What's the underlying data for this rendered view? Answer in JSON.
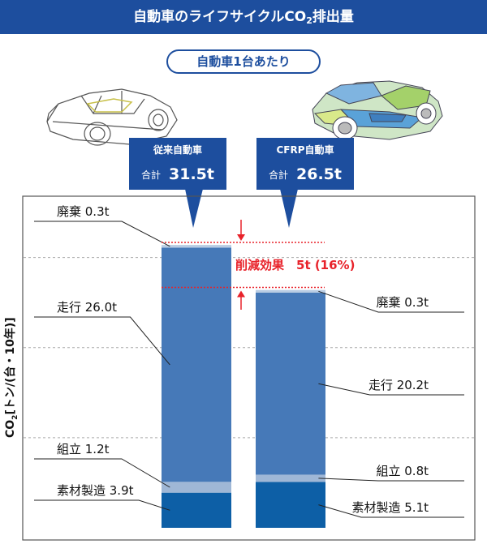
{
  "header": {
    "title_pre": "自動車のライフサイクルCO",
    "title_sub": "2",
    "title_post": "排出量"
  },
  "subtitle": "自動車1台あたり",
  "ylabel": {
    "pre": "CO",
    "sub": "2",
    "post": "[トン/(台・10年)]"
  },
  "callouts": [
    {
      "name": "従来自動車",
      "total_label": "合計",
      "total": "31.5t"
    },
    {
      "name": "CFRP自動車",
      "total_label": "合計",
      "total": "26.5t"
    }
  ],
  "reduction_label": "削減効果　5t (16%)",
  "colors": {
    "title": "#1d4e9e",
    "material": "#0d5fa6",
    "assembly": "#9fb7d6",
    "driving": "#4679b8",
    "disposal": "#b9cce3",
    "reduction": "#e8222a"
  },
  "chart_data": {
    "type": "bar",
    "stacked": true,
    "categories": [
      "従来自動車",
      "CFRP自動車"
    ],
    "ylim": [
      0,
      33
    ],
    "grid": "dashed horizontal",
    "series": [
      {
        "name": "素材製造",
        "values": [
          3.9,
          5.1
        ],
        "labels": [
          "素材製造 3.9t",
          "素材製造 5.1t"
        ]
      },
      {
        "name": "組立",
        "values": [
          1.2,
          0.8
        ],
        "labels": [
          "組立 1.2t",
          "組立 0.8t"
        ]
      },
      {
        "name": "走行",
        "values": [
          26.0,
          20.2
        ],
        "labels": [
          "走行 26.0t",
          "走行 20.2t"
        ]
      },
      {
        "name": "廃棄",
        "values": [
          0.3,
          0.3
        ],
        "labels": [
          "廃棄 0.3t",
          "廃棄 0.3t"
        ]
      }
    ],
    "totals": [
      31.5,
      26.5
    ],
    "reduction": {
      "value": 5,
      "percent": 16
    }
  }
}
